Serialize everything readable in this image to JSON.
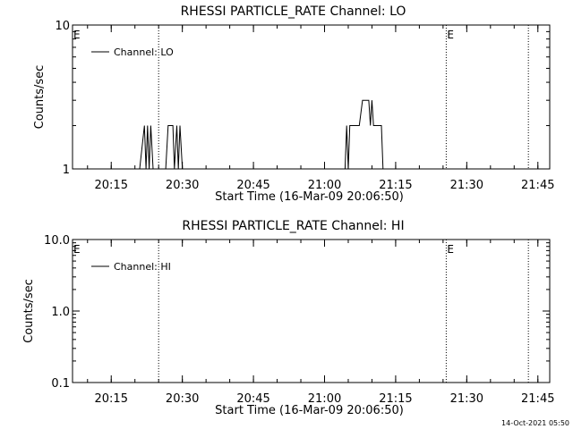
{
  "footer": {
    "timestamp": "14-Oct-2021 05:50"
  },
  "chart_data": [
    {
      "type": "line",
      "title": "RHESSI PARTICLE_RATE Channel: LO",
      "xlabel": "Start Time (16-Mar-09 20:06:50)",
      "ylabel": "Counts/sec",
      "yscale": "log",
      "ylim": [
        1,
        10
      ],
      "ytick_labels": [
        {
          "value": 1,
          "label": "1"
        },
        {
          "value": 10,
          "label": "10"
        }
      ],
      "xlim": [
        "20:06:50",
        "21:47:30"
      ],
      "xtick_labels": [
        "20:15",
        "20:30",
        "20:45",
        "21:00",
        "21:15",
        "21:30",
        "21:45"
      ],
      "legend": {
        "position": "top-left",
        "entries": [
          "Channel: LO"
        ]
      },
      "vlines": [
        "20:25:00",
        "21:25:40",
        "21:43:00"
      ],
      "markers": [
        {
          "time": "20:06:50",
          "label": "E"
        },
        {
          "time": "21:25:40",
          "label": "E"
        }
      ],
      "series": [
        {
          "name": "Channel: LO",
          "points": [
            [
              "20:21:00",
              1
            ],
            [
              "20:22:00",
              2
            ],
            [
              "20:22:20",
              1
            ],
            [
              "20:22:40",
              2
            ],
            [
              "20:23:00",
              1
            ],
            [
              "20:23:20",
              2
            ],
            [
              "20:23:50",
              1
            ],
            [
              "20:26:30",
              1
            ],
            [
              "20:27:00",
              2
            ],
            [
              "20:28:00",
              2
            ],
            [
              "20:28:20",
              1
            ],
            [
              "20:28:50",
              2
            ],
            [
              "20:29:10",
              1
            ],
            [
              "20:29:30",
              2
            ],
            [
              "20:30:00",
              1
            ],
            [
              "21:04:20",
              1
            ],
            [
              "21:04:40",
              2
            ],
            [
              "21:05:00",
              1
            ],
            [
              "21:05:20",
              2
            ],
            [
              "21:07:20",
              2
            ],
            [
              "21:08:00",
              3
            ],
            [
              "21:09:20",
              3
            ],
            [
              "21:09:40",
              2
            ],
            [
              "21:10:00",
              3
            ],
            [
              "21:10:20",
              2
            ],
            [
              "21:12:00",
              2
            ],
            [
              "21:12:20",
              1
            ]
          ]
        }
      ]
    },
    {
      "type": "line",
      "title": "RHESSI PARTICLE_RATE Channel: HI",
      "xlabel": "Start Time (16-Mar-09 20:06:50)",
      "ylabel": "Counts/sec",
      "yscale": "log",
      "ylim": [
        0.1,
        10
      ],
      "ytick_labels": [
        {
          "value": 0.1,
          "label": "0.1"
        },
        {
          "value": 1,
          "label": "1.0"
        },
        {
          "value": 10,
          "label": "10.0"
        }
      ],
      "xlim": [
        "20:06:50",
        "21:47:30"
      ],
      "xtick_labels": [
        "20:15",
        "20:30",
        "20:45",
        "21:00",
        "21:15",
        "21:30",
        "21:45"
      ],
      "legend": {
        "position": "top-left",
        "entries": [
          "Channel: HI"
        ]
      },
      "vlines": [
        "20:25:00",
        "21:25:40",
        "21:43:00"
      ],
      "markers": [
        {
          "time": "20:06:50",
          "label": "E"
        },
        {
          "time": "21:25:40",
          "label": "E"
        }
      ],
      "series": [
        {
          "name": "Channel: HI",
          "points": []
        }
      ]
    }
  ]
}
